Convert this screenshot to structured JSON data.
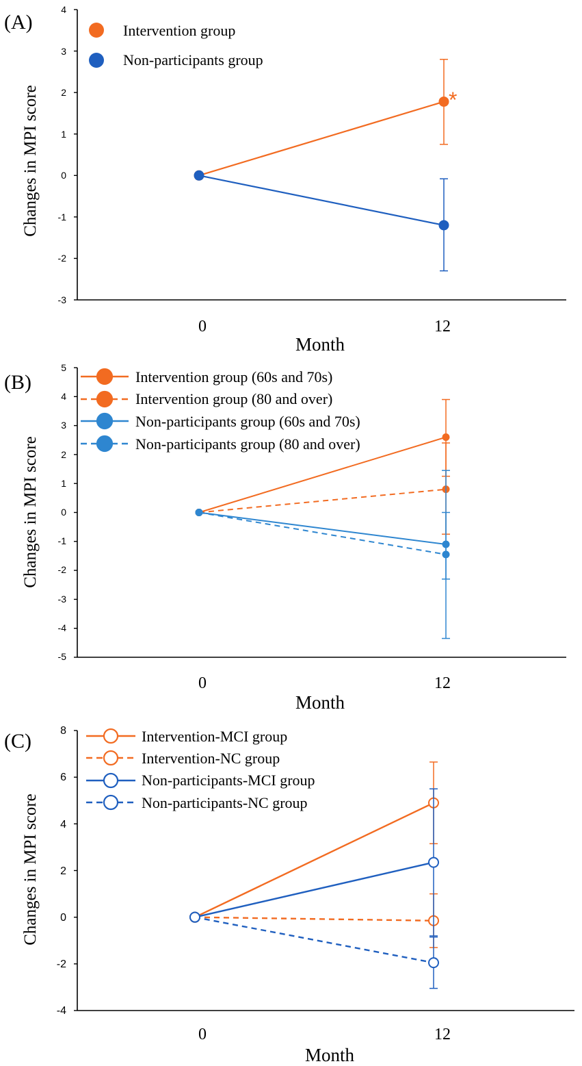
{
  "colors": {
    "orange": "#f26b21",
    "blue": "#1f5fbf",
    "blue_light": "#2e86d0"
  },
  "chart_data": [
    {
      "panel": "(A)",
      "type": "line",
      "xlabel": "Month",
      "ylabel": "Changes in MPI score",
      "categories": [
        "0",
        "12"
      ],
      "yticks": [
        "4",
        "3",
        "2",
        "1",
        "0",
        "-1",
        "-2",
        "-3"
      ],
      "ylim": [
        -3,
        4
      ],
      "significance_marker": "*",
      "legend": {
        "position": "top-left"
      },
      "series": [
        {
          "name": "Intervention group",
          "color": "orange",
          "dash": "solid",
          "marker": "filled",
          "values": [
            0,
            1.78
          ],
          "error_low": [
            0,
            0.75
          ],
          "error_high": [
            0,
            2.8
          ]
        },
        {
          "name": "Non-participants group",
          "color": "blue",
          "dash": "solid",
          "marker": "filled",
          "values": [
            0,
            -1.2
          ],
          "error_low": [
            0,
            -2.3
          ],
          "error_high": [
            0,
            -0.08
          ]
        }
      ]
    },
    {
      "panel": "(B)",
      "type": "line",
      "xlabel": "Month",
      "ylabel": "Changes in MPI score",
      "categories": [
        "0",
        "12"
      ],
      "yticks": [
        "5",
        "4",
        "3",
        "2",
        "1",
        "0",
        "-1",
        "-2",
        "-3",
        "-4",
        "-5"
      ],
      "ylim": [
        -5,
        5
      ],
      "legend": {
        "position": "top-left"
      },
      "series": [
        {
          "name": "Intervention group (60s and 70s)",
          "color": "orange",
          "dash": "solid",
          "marker": "filled",
          "values": [
            0,
            2.6
          ],
          "error_low": [
            0,
            1.25
          ],
          "error_high": [
            0,
            3.9
          ]
        },
        {
          "name": "Intervention group (80 and over)",
          "color": "orange",
          "dash": "dashed",
          "marker": "filled",
          "values": [
            0,
            0.8
          ],
          "error_low": [
            0,
            -0.75
          ],
          "error_high": [
            0,
            2.4
          ]
        },
        {
          "name": "Non-participants group (60s and 70s)",
          "color": "blue_light",
          "dash": "solid",
          "marker": "filled",
          "values": [
            0,
            -1.1
          ],
          "error_low": [
            0,
            -2.3
          ],
          "error_high": [
            0,
            0.0
          ]
        },
        {
          "name": "Non-participants group (80 and over)",
          "color": "blue_light",
          "dash": "dashed",
          "marker": "filled",
          "values": [
            0,
            -1.45
          ],
          "error_low": [
            0,
            -4.35
          ],
          "error_high": [
            0,
            1.45
          ]
        }
      ]
    },
    {
      "panel": "(C)",
      "type": "line",
      "xlabel": "Month",
      "ylabel": "Changes in MPI score",
      "categories": [
        "0",
        "12"
      ],
      "yticks": [
        "8",
        "6",
        "4",
        "2",
        "0",
        "-2",
        "-4"
      ],
      "ylim": [
        -4,
        8
      ],
      "legend": {
        "position": "top-left"
      },
      "series": [
        {
          "name": "Intervention-MCI group",
          "color": "orange",
          "dash": "solid",
          "marker": "open",
          "values": [
            0,
            4.9
          ],
          "error_low": [
            0,
            3.15
          ],
          "error_high": [
            0,
            6.65
          ]
        },
        {
          "name": "Intervention-NC group",
          "color": "orange",
          "dash": "dashed",
          "marker": "open",
          "values": [
            0,
            -0.15
          ],
          "error_low": [
            0,
            -1.3
          ],
          "error_high": [
            0,
            1.0
          ]
        },
        {
          "name": "Non-participants-MCI group",
          "color": "blue",
          "dash": "solid",
          "marker": "open",
          "values": [
            0,
            2.35
          ],
          "error_low": [
            0,
            -0.8
          ],
          "error_high": [
            0,
            5.5
          ]
        },
        {
          "name": "Non-participants-NC group",
          "color": "blue",
          "dash": "dashed",
          "marker": "open",
          "values": [
            0,
            -1.95
          ],
          "error_low": [
            0,
            -3.05
          ],
          "error_high": [
            0,
            -0.85
          ]
        }
      ]
    }
  ]
}
